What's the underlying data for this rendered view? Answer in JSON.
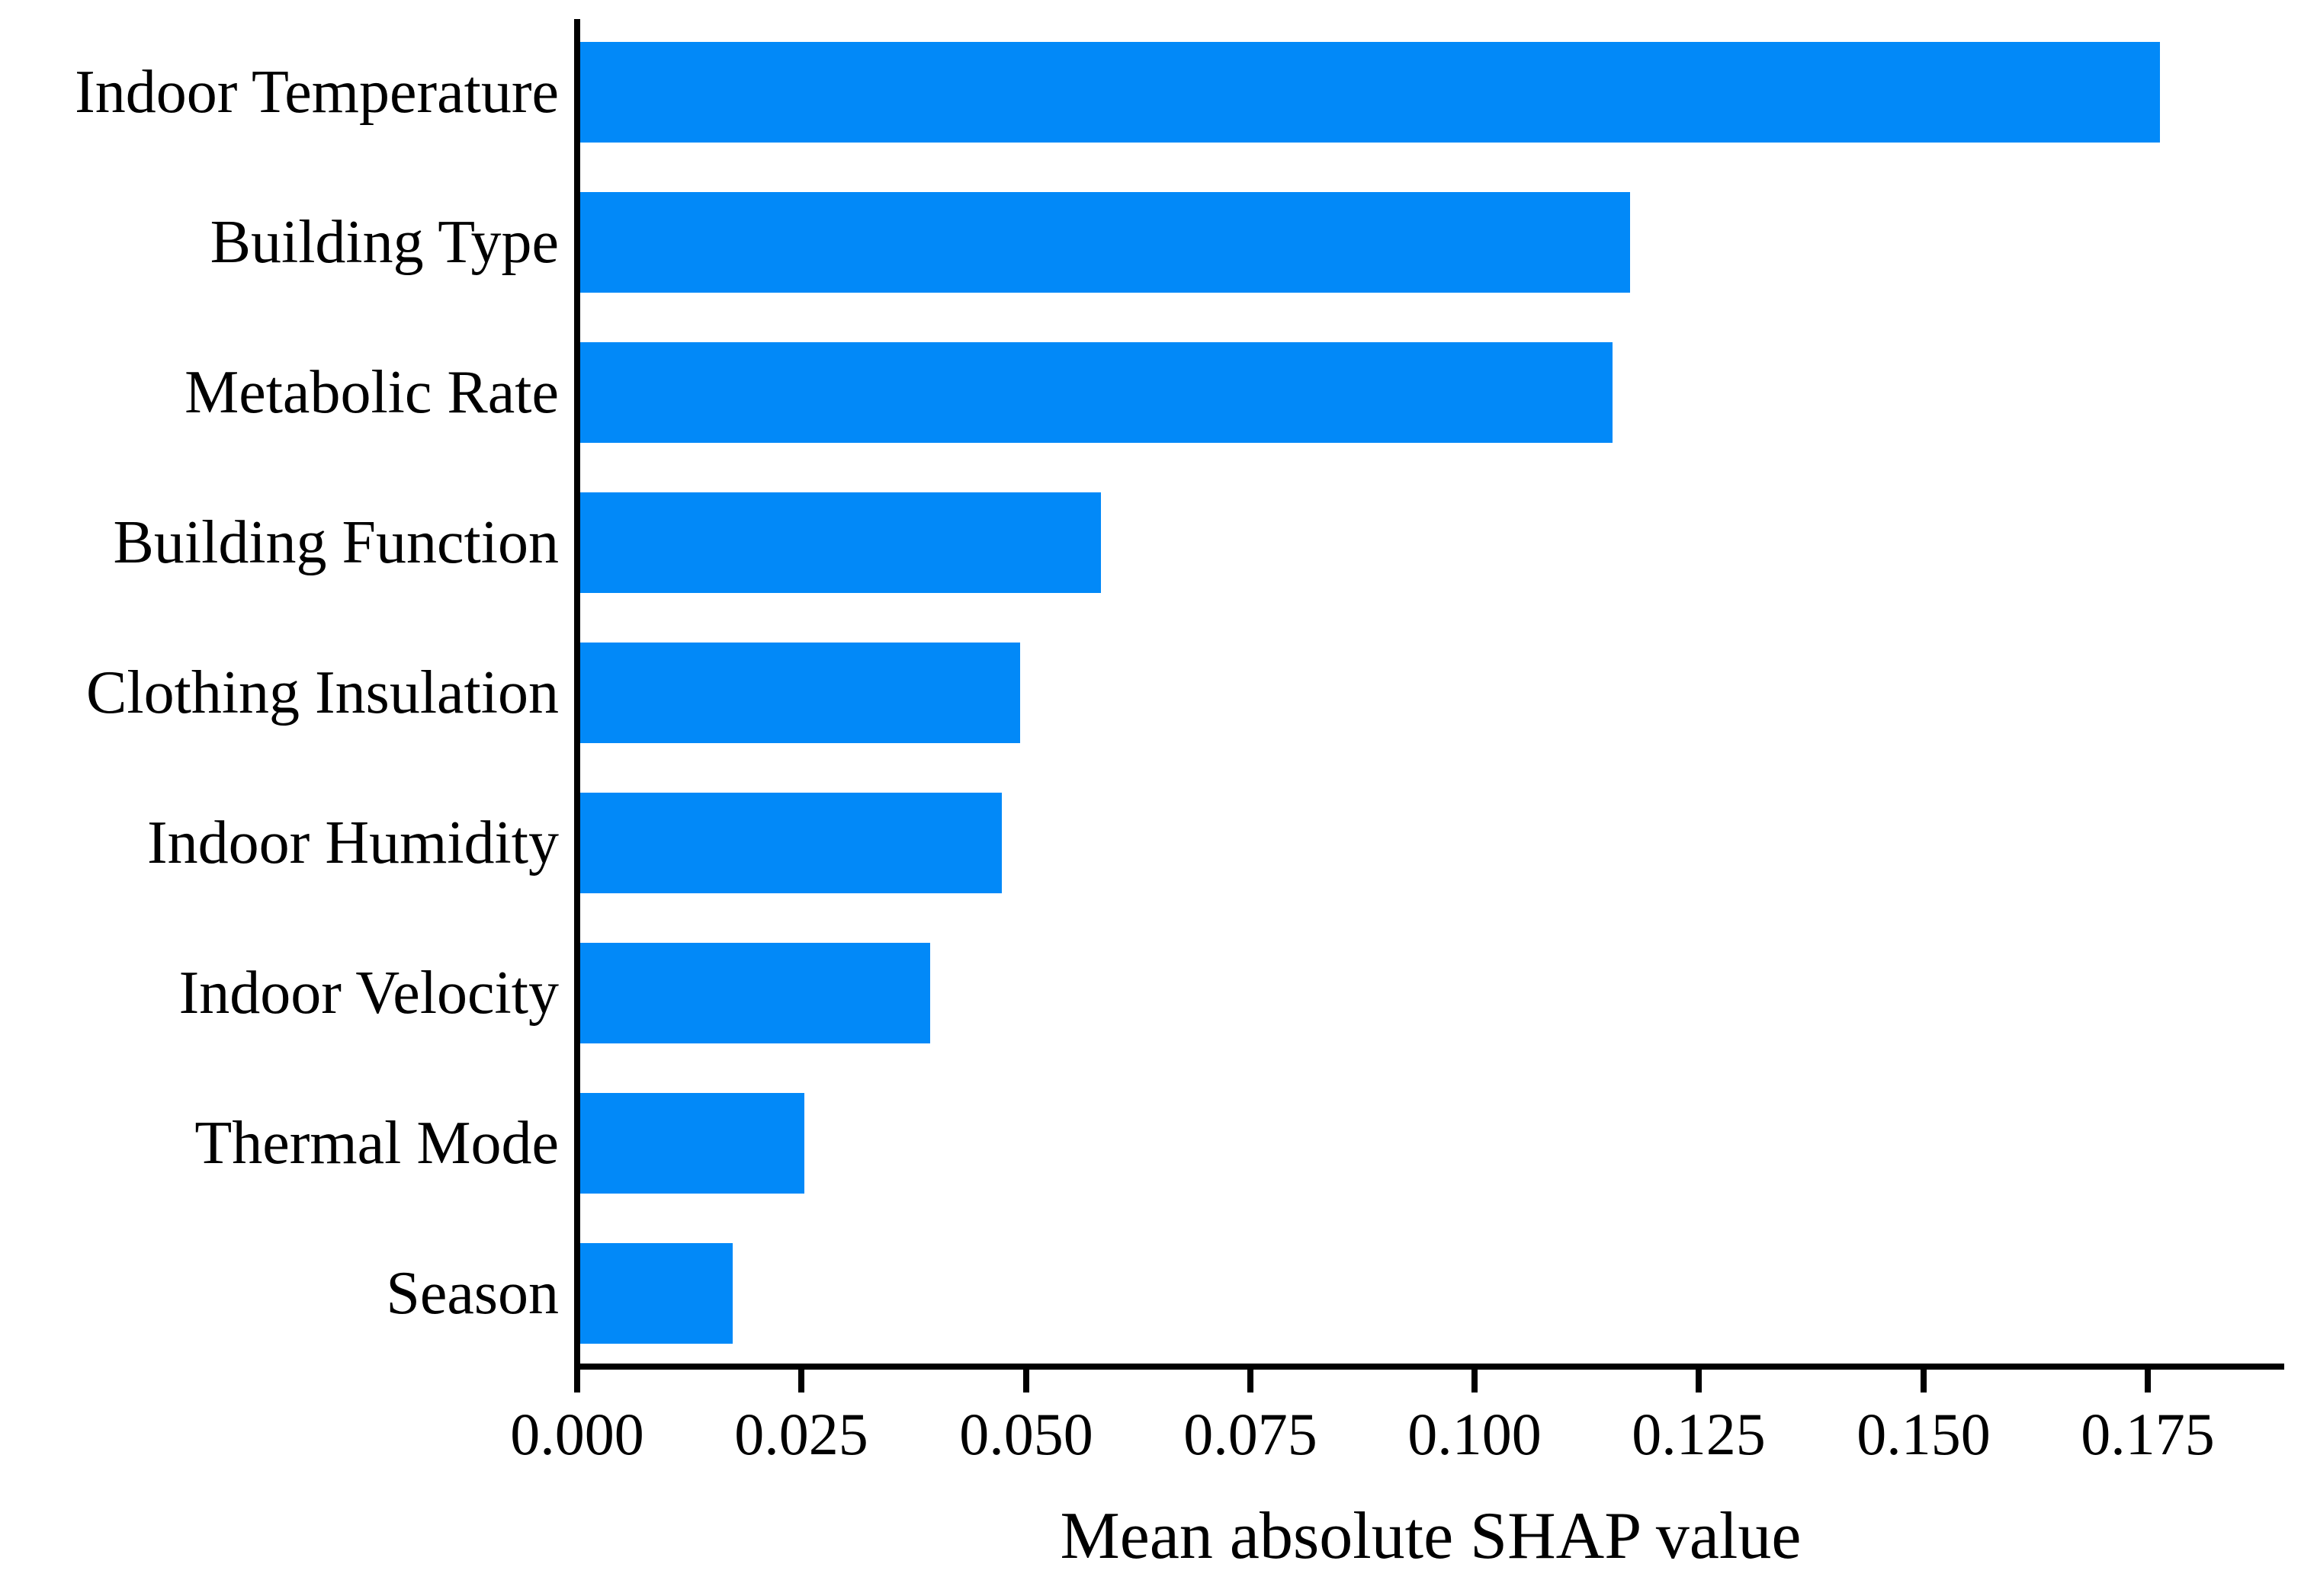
{
  "chart_data": {
    "type": "bar",
    "orientation": "horizontal",
    "title": "",
    "xlabel": "Mean absolute SHAP value",
    "ylabel": "",
    "categories": [
      "Indoor Temperature",
      "Building Type",
      "Metabolic Rate",
      "Building Function",
      "Clothing Insulation",
      "Indoor Humidity",
      "Indoor Velocity",
      "Thermal Mode",
      "Season"
    ],
    "values": [
      0.176,
      0.117,
      0.115,
      0.058,
      0.049,
      0.047,
      0.039,
      0.025,
      0.017
    ],
    "x_ticks": [
      {
        "value": 0.0,
        "label": "0.000"
      },
      {
        "value": 0.025,
        "label": "0.025"
      },
      {
        "value": 0.05,
        "label": "0.050"
      },
      {
        "value": 0.075,
        "label": "0.075"
      },
      {
        "value": 0.1,
        "label": "0.100"
      },
      {
        "value": 0.125,
        "label": "0.125"
      },
      {
        "value": 0.15,
        "label": "0.150"
      },
      {
        "value": 0.175,
        "label": "0.175"
      }
    ],
    "xlim": [
      0,
      0.19
    ],
    "grid": false,
    "legend": null,
    "bar_color": "#0289f8",
    "axis_color": "#000000",
    "text_color": "#000000"
  }
}
